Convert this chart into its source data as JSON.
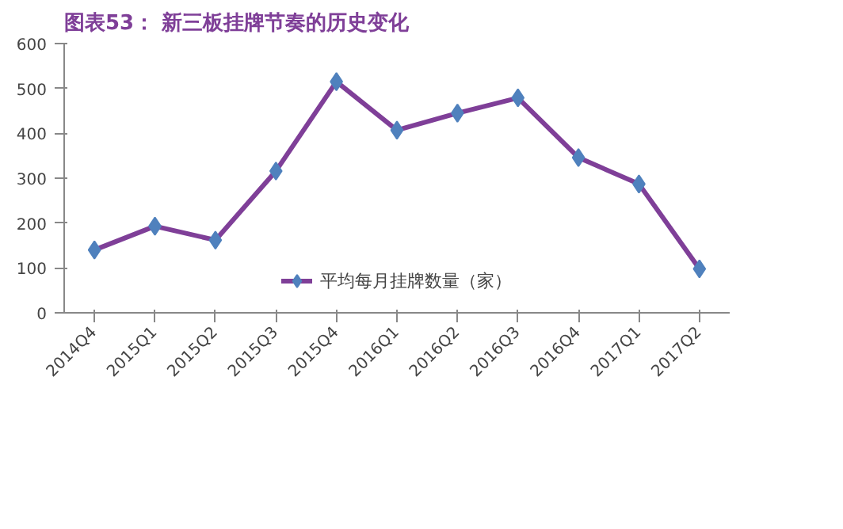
{
  "chart_data": {
    "type": "line",
    "title": "图表53：  新三板挂牌节奏的历史变化",
    "categories": [
      "2014Q4",
      "2015Q1",
      "2015Q2",
      "2015Q3",
      "2015Q4",
      "2016Q1",
      "2016Q2",
      "2016Q3",
      "2016Q4",
      "2017Q1",
      "2017Q2"
    ],
    "series": [
      {
        "name": "平均每月挂牌数量（家）",
        "color": "#7f3f98",
        "values": [
          140,
          193,
          162,
          316,
          515,
          407,
          445,
          479,
          346,
          287,
          98
        ]
      }
    ],
    "ylim": [
      0,
      600
    ],
    "yticks": [
      0,
      100,
      200,
      300,
      400,
      500,
      600
    ],
    "marker": "diamond",
    "line_style": "solid",
    "legend": "bottom",
    "grid": false
  }
}
